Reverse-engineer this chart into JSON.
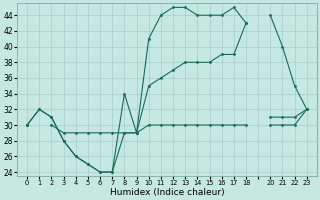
{
  "xlabel": "Humidex (Indice chaleur)",
  "bg_color": "#c5e8e0",
  "line_color": "#1a6b5a",
  "grid_color": "#a8ccc8",
  "ylim": [
    23.5,
    45.5
  ],
  "yticks": [
    24,
    26,
    28,
    30,
    32,
    34,
    36,
    38,
    40,
    42,
    44
  ],
  "xlabels": [
    "0",
    "1",
    "2",
    "3",
    "4",
    "5",
    "6",
    "7",
    "8",
    "9",
    "10",
    "11",
    "12",
    "13",
    "14",
    "15",
    "16",
    "17",
    "18",
    "",
    "20",
    "21",
    "22",
    "23"
  ],
  "line1_y": [
    30,
    32,
    31,
    28,
    26,
    25,
    24,
    24,
    34,
    29,
    41,
    44,
    45,
    45,
    44,
    44,
    44,
    45,
    43,
    null,
    44,
    40,
    35,
    32
  ],
  "line2_y": [
    30,
    32,
    31,
    28,
    26,
    25,
    24,
    24,
    29,
    29,
    35,
    36,
    37,
    38,
    38,
    38,
    39,
    39,
    43,
    null,
    30,
    30,
    30,
    32
  ],
  "line3_y": [
    30,
    null,
    30,
    29,
    29,
    29,
    29,
    29,
    29,
    29,
    30,
    30,
    30,
    30,
    30,
    30,
    30,
    30,
    30,
    null,
    31,
    31,
    31,
    32
  ]
}
